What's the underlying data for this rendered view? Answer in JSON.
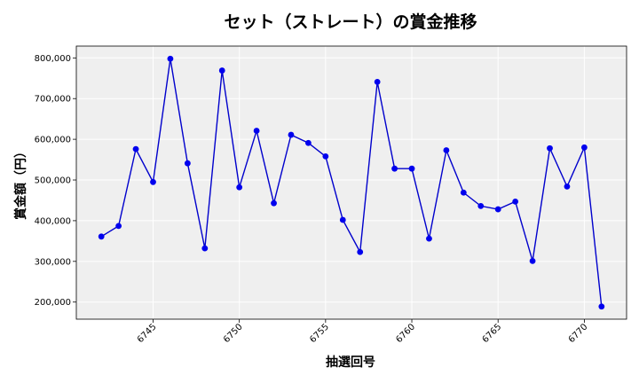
{
  "chart_data": {
    "type": "line",
    "title": "セット（ストレート）の賞金推移",
    "xlabel": "抽選回号",
    "ylabel": "賞金額（円）",
    "x": [
      6742,
      6743,
      6744,
      6745,
      6746,
      6747,
      6748,
      6749,
      6750,
      6751,
      6752,
      6753,
      6754,
      6755,
      6756,
      6757,
      6758,
      6759,
      6760,
      6761,
      6762,
      6763,
      6764,
      6765,
      6766,
      6767,
      6768,
      6769,
      6770,
      6771
    ],
    "series": [
      {
        "values": [
          361000,
          387000,
          576000,
          495000,
          798000,
          541000,
          332000,
          769000,
          482000,
          621000,
          443000,
          611000,
          591000,
          558000,
          402000,
          323000,
          741000,
          528000,
          528000,
          356000,
          573000,
          469000,
          436000,
          428000,
          447000,
          301000,
          578000,
          484000,
          580000,
          189000
        ]
      }
    ],
    "xticks": [
      6745,
      6750,
      6755,
      6760,
      6765,
      6770
    ],
    "yticks": [
      200000,
      300000,
      400000,
      500000,
      600000,
      700000,
      800000
    ],
    "ytick_labels": [
      "200,000",
      "300,000",
      "400,000",
      "500,000",
      "600,000",
      "700,000",
      "800,000"
    ],
    "xlim": [
      6740.55,
      6772.45
    ],
    "ylim": [
      158000,
      829000
    ],
    "grid": true,
    "colors": {
      "line": "#0000cc",
      "marker": "#0000ee",
      "plot_bg": "#efefef",
      "grid": "#ffffff"
    }
  }
}
